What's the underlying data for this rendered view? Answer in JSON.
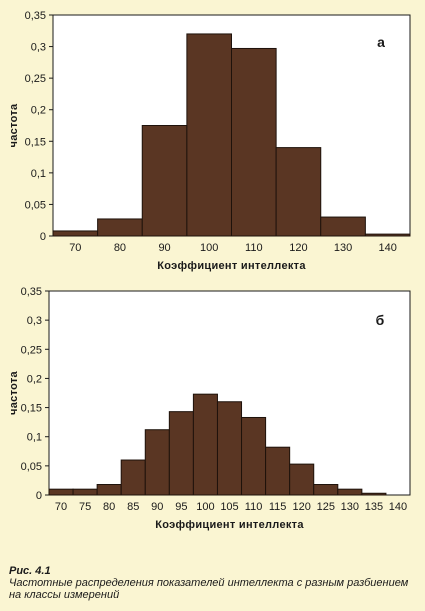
{
  "chart_data": [
    {
      "type": "bar",
      "panel_label": "а",
      "xlabel": "Коэффициент  интеллекта",
      "ylabel": "частота",
      "ylim": [
        0,
        0.35
      ],
      "yticks": [
        "0",
        "0,05",
        "0,1",
        "0,15",
        "0,2",
        "0,25",
        "0,3",
        "0,35"
      ],
      "xticks": [
        "70",
        "80",
        "90",
        "100",
        "110",
        "120",
        "130",
        "140"
      ],
      "xrange": [
        65,
        145
      ],
      "bin_width": 10,
      "bins": [
        {
          "x": 70,
          "value": 0.008
        },
        {
          "x": 80,
          "value": 0.027
        },
        {
          "x": 90,
          "value": 0.175
        },
        {
          "x": 100,
          "value": 0.32
        },
        {
          "x": 110,
          "value": 0.297
        },
        {
          "x": 120,
          "value": 0.14
        },
        {
          "x": 130,
          "value": 0.03
        },
        {
          "x": 140,
          "value": 0.003
        }
      ]
    },
    {
      "type": "bar",
      "panel_label": "б",
      "xlabel": "Коэффициент  интеллекта",
      "ylabel": "частота",
      "ylim": [
        0,
        0.35
      ],
      "yticks": [
        "0",
        "0,05",
        "0,1",
        "0,15",
        "0,2",
        "0,25",
        "0,3",
        "0,35"
      ],
      "xticks": [
        "70",
        "75",
        "80",
        "85",
        "90",
        "95",
        "100",
        "105",
        "110",
        "115",
        "120",
        "125",
        "130",
        "135",
        "140"
      ],
      "xrange": [
        67.5,
        142.5
      ],
      "bin_width": 5,
      "bins": [
        {
          "x": 70,
          "value": 0.01
        },
        {
          "x": 75,
          "value": 0.01
        },
        {
          "x": 80,
          "value": 0.018
        },
        {
          "x": 85,
          "value": 0.06
        },
        {
          "x": 90,
          "value": 0.112
        },
        {
          "x": 95,
          "value": 0.143
        },
        {
          "x": 100,
          "value": 0.173
        },
        {
          "x": 105,
          "value": 0.16
        },
        {
          "x": 110,
          "value": 0.133
        },
        {
          "x": 115,
          "value": 0.082
        },
        {
          "x": 120,
          "value": 0.053
        },
        {
          "x": 125,
          "value": 0.018
        },
        {
          "x": 130,
          "value": 0.01
        },
        {
          "x": 135,
          "value": 0.003
        }
      ]
    }
  ],
  "colors": {
    "bar": "#5a3623",
    "bar_edge": "#1e120b",
    "axis": "#1a1a1a",
    "background": "#faf5d2",
    "plot_bg": "#ffffff"
  },
  "caption": {
    "figure": "Рис. 4.1",
    "text": "Частотные распределения показателей интеллекта с разным разбиением на классы измерений"
  }
}
